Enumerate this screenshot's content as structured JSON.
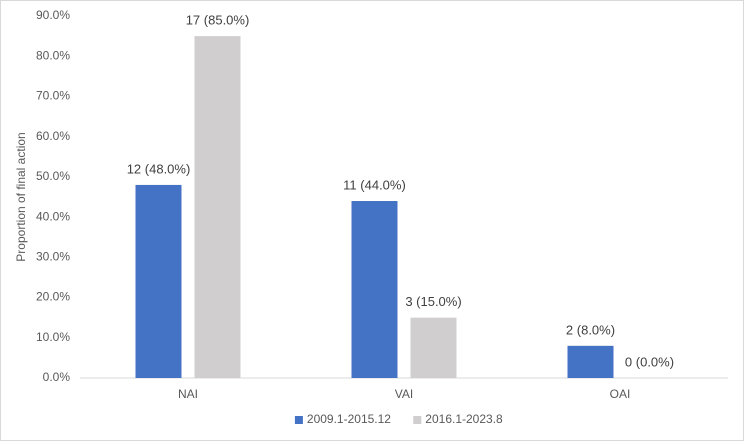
{
  "chart_data": {
    "type": "bar",
    "y_label": "Proportion of final action",
    "categories": [
      "NAI",
      "VAI",
      "OAI"
    ],
    "series": [
      {
        "name": "2009.1-2015.12",
        "color": "#4472c4",
        "values": [
          48,
          44,
          8
        ],
        "value_labels": [
          "12 (48.0%)",
          "11 (44.0%)",
          "2 (8.0%)"
        ]
      },
      {
        "name": "2016.1-2023.8",
        "color": "#d0cece",
        "values": [
          85,
          15,
          0
        ],
        "value_labels": [
          "17 (85.0%)",
          "3 (15.0%)",
          "0 (0.0%)"
        ]
      }
    ],
    "ylim": [
      0,
      90
    ],
    "yticks": [
      {
        "value": 0,
        "label": "0.0%"
      },
      {
        "value": 10,
        "label": "10.0%"
      },
      {
        "value": 20,
        "label": "20.0%"
      },
      {
        "value": 30,
        "label": "30.0%"
      },
      {
        "value": 40,
        "label": "40.0%"
      },
      {
        "value": 50,
        "label": "50.0%"
      },
      {
        "value": 60,
        "label": "60.0%"
      },
      {
        "value": 70,
        "label": "70.0%"
      },
      {
        "value": 80,
        "label": "80.0%"
      },
      {
        "value": 90,
        "label": "90.0%"
      }
    ],
    "grid": false,
    "legend": "bottom"
  }
}
